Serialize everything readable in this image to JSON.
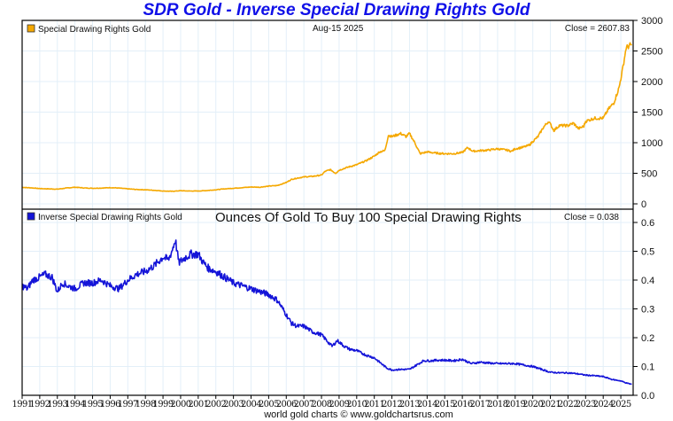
{
  "title": "SDR Gold - Inverse Special Drawing Rights Gold",
  "footer": "world gold charts © www.goldchartsrus.com",
  "colors": {
    "gold": "#f5a800",
    "inverse": "#1414d8",
    "grid": "#e3eff8",
    "title": "#1010e8"
  },
  "chart_data": [
    {
      "type": "line",
      "panel": "top",
      "legend": "Special Drawing Rights Gold",
      "date_label": "Aug-15  2025",
      "close_label": "Close = 2607.83",
      "ylim": [
        0,
        3000
      ],
      "yticks": [
        "0",
        "500",
        "1000",
        "1500",
        "2000",
        "2500",
        "3000"
      ],
      "ytick_values": [
        0,
        500,
        1000,
        1500,
        2000,
        2500,
        3000
      ],
      "grid": true,
      "series": [
        {
          "name": "Special Drawing Rights Gold",
          "x": [
            1991.0,
            1991.5,
            1992.0,
            1992.5,
            1993.0,
            1993.5,
            1994.0,
            1994.5,
            1995.0,
            1995.5,
            1996.0,
            1996.5,
            1997.0,
            1997.5,
            1998.0,
            1998.5,
            1999.0,
            1999.5,
            2000.0,
            2000.5,
            2001.0,
            2001.5,
            2002.0,
            2002.5,
            2003.0,
            2003.5,
            2004.0,
            2004.5,
            2005.0,
            2005.5,
            2006.0,
            2006.3,
            2006.6,
            2007.0,
            2007.5,
            2008.0,
            2008.2,
            2008.5,
            2008.8,
            2009.0,
            2009.5,
            2010.0,
            2010.5,
            2011.0,
            2011.3,
            2011.6,
            2011.8,
            2012.0,
            2012.5,
            2012.8,
            2013.0,
            2013.3,
            2013.6,
            2014.0,
            2014.5,
            2015.0,
            2015.5,
            2016.0,
            2016.3,
            2016.6,
            2017.0,
            2017.5,
            2018.0,
            2018.5,
            2018.8,
            2019.0,
            2019.5,
            2019.8,
            2020.0,
            2020.3,
            2020.6,
            2020.9,
            2021.2,
            2021.5,
            2022.0,
            2022.3,
            2022.6,
            2022.9,
            2023.0,
            2023.5,
            2024.0,
            2024.3,
            2024.6,
            2024.9,
            2025.1,
            2025.3,
            2025.62
          ],
          "values": [
            270,
            262,
            250,
            245,
            240,
            258,
            272,
            260,
            255,
            258,
            265,
            258,
            245,
            235,
            230,
            222,
            210,
            205,
            215,
            210,
            210,
            218,
            230,
            245,
            255,
            265,
            275,
            272,
            290,
            300,
            350,
            400,
            420,
            440,
            450,
            470,
            530,
            560,
            500,
            550,
            600,
            640,
            700,
            780,
            850,
            870,
            1120,
            1100,
            1150,
            1100,
            1150,
            1000,
            820,
            850,
            830,
            820,
            820,
            840,
            920,
            860,
            870,
            880,
            900,
            880,
            860,
            900,
            930,
            960,
            1020,
            1100,
            1250,
            1350,
            1200,
            1280,
            1280,
            1320,
            1230,
            1270,
            1350,
            1400,
            1400,
            1550,
            1650,
            1900,
            2200,
            2550,
            2608
          ]
        }
      ]
    },
    {
      "type": "line",
      "panel": "bottom",
      "legend": "Inverse Special Drawing Rights Gold",
      "subtitle": "Ounces Of Gold To Buy 100 Special Drawing Rights",
      "close_label": "Close = 0.038",
      "ylim": [
        0.0,
        0.65
      ],
      "yticks": [
        "0.0",
        "0.1",
        "0.2",
        "0.3",
        "0.4",
        "0.5",
        "0.6"
      ],
      "ytick_values": [
        0.0,
        0.1,
        0.2,
        0.3,
        0.4,
        0.5,
        0.6
      ],
      "xlim": [
        1991.0,
        2025.7
      ],
      "xticks": [
        "1991",
        "1992",
        "1993",
        "1994",
        "1995",
        "1996",
        "1997",
        "1998",
        "1999",
        "2000",
        "2001",
        "2002",
        "2003",
        "2004",
        "2005",
        "2006",
        "2007",
        "2008",
        "2009",
        "2010",
        "2011",
        "2012",
        "2013",
        "2014",
        "2015",
        "2016",
        "2017",
        "2018",
        "2019",
        "2020",
        "2021",
        "2022",
        "2023",
        "2024",
        "2025"
      ],
      "grid": true,
      "series": [
        {
          "name": "Inverse Special Drawing Rights Gold",
          "x": [
            1991.0,
            1991.3,
            1991.6,
            1992.0,
            1992.3,
            1992.7,
            1993.0,
            1993.3,
            1993.6,
            1994.0,
            1994.5,
            1995.0,
            1995.5,
            1996.0,
            1996.5,
            1997.0,
            1997.5,
            1998.0,
            1998.5,
            1999.0,
            1999.3,
            1999.5,
            1999.7,
            1999.9,
            2000.3,
            2000.6,
            2001.0,
            2001.3,
            2001.6,
            2002.0,
            2002.5,
            2003.0,
            2003.5,
            2004.0,
            2004.5,
            2005.0,
            2005.5,
            2006.0,
            2006.3,
            2006.6,
            2007.0,
            2007.5,
            2008.0,
            2008.3,
            2008.6,
            2008.9,
            2009.3,
            2009.6,
            2010.0,
            2010.5,
            2011.0,
            2011.4,
            2011.7,
            2012.0,
            2012.5,
            2013.0,
            2013.4,
            2013.8,
            2014.2,
            2014.6,
            2015.0,
            2015.5,
            2016.0,
            2016.5,
            2017.0,
            2017.5,
            2018.0,
            2018.5,
            2019.0,
            2019.5,
            2020.0,
            2020.5,
            2021.0,
            2021.5,
            2022.0,
            2022.5,
            2023.0,
            2023.5,
            2024.0,
            2024.5,
            2025.0,
            2025.3,
            2025.62
          ],
          "values": [
            0.38,
            0.37,
            0.4,
            0.41,
            0.42,
            0.41,
            0.36,
            0.39,
            0.38,
            0.37,
            0.39,
            0.39,
            0.4,
            0.38,
            0.37,
            0.4,
            0.42,
            0.43,
            0.45,
            0.48,
            0.47,
            0.5,
            0.54,
            0.46,
            0.48,
            0.49,
            0.49,
            0.46,
            0.44,
            0.43,
            0.41,
            0.39,
            0.38,
            0.37,
            0.36,
            0.35,
            0.33,
            0.28,
            0.25,
            0.24,
            0.24,
            0.22,
            0.21,
            0.19,
            0.17,
            0.19,
            0.17,
            0.16,
            0.155,
            0.14,
            0.13,
            0.11,
            0.095,
            0.088,
            0.09,
            0.09,
            0.105,
            0.12,
            0.12,
            0.122,
            0.122,
            0.12,
            0.125,
            0.11,
            0.115,
            0.112,
            0.11,
            0.11,
            0.11,
            0.105,
            0.1,
            0.09,
            0.08,
            0.078,
            0.078,
            0.075,
            0.07,
            0.068,
            0.065,
            0.055,
            0.05,
            0.043,
            0.038
          ]
        }
      ]
    }
  ]
}
